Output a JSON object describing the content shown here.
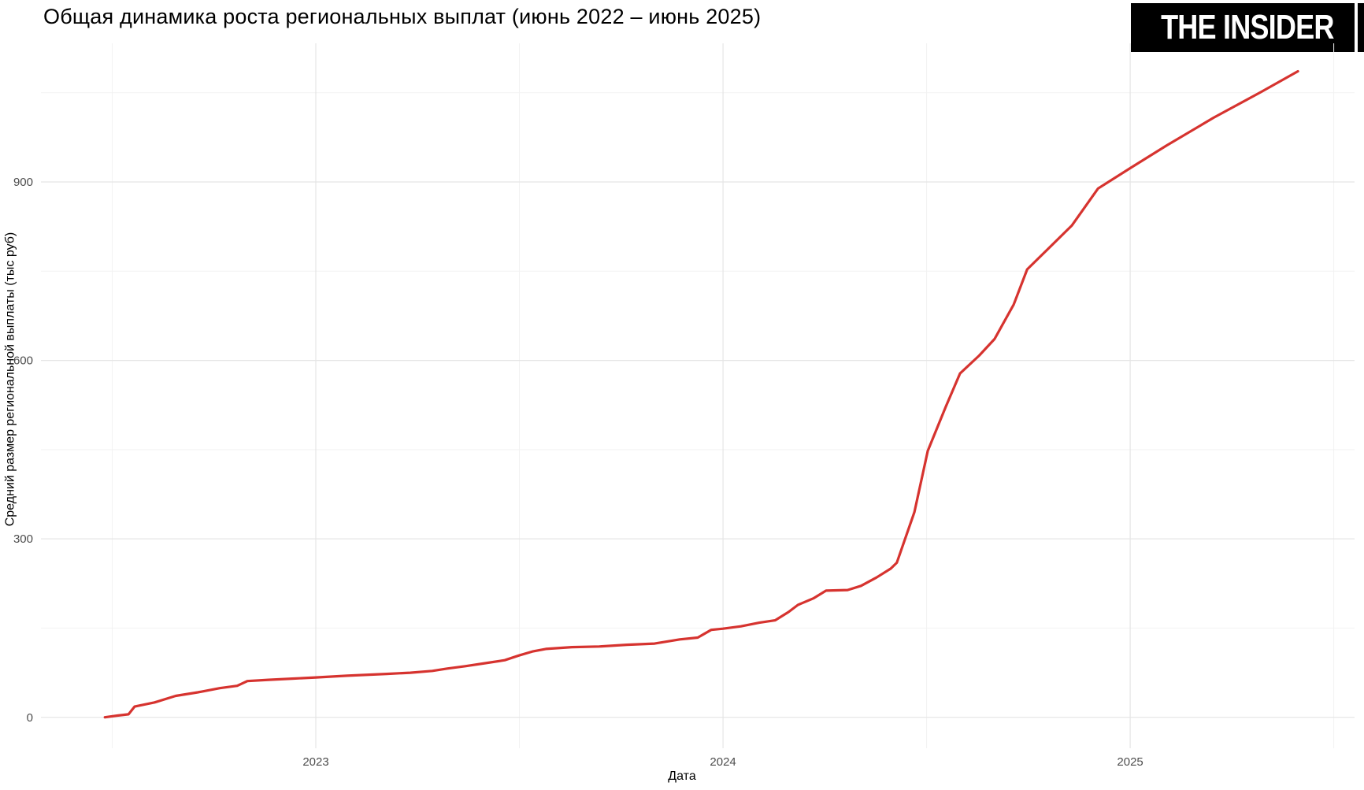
{
  "header": {
    "title": "Общая динамика роста региональных выплат (июнь 2022 – июнь 2025)",
    "logo_text": "THE INSIDER"
  },
  "colors": {
    "line": "#d6332f",
    "grid_major": "#e5e5e5",
    "grid_minor": "#f2f2f2",
    "tick_text": "#4d4d4d",
    "background": "#ffffff",
    "logo_bg": "#000000",
    "logo_text": "#ffffff"
  },
  "chart_data": {
    "type": "line",
    "title": "Общая динамика роста региональных выплат (июнь 2022 – июнь 2025)",
    "xlabel": "Дата",
    "ylabel": "Средний размер региональной выплаты (тыс руб)",
    "legend_position": "none",
    "grid": true,
    "xlim": [
      2022.325,
      2025.551
    ],
    "ylim": [
      -52,
      1133
    ],
    "x_major_ticks": [
      {
        "label": "2023",
        "x": 2023
      },
      {
        "label": "2024",
        "x": 2024
      },
      {
        "label": "2025",
        "x": 2025
      }
    ],
    "x_minor_ticks": [
      2022.5,
      2023.5,
      2024.5,
      2025.5
    ],
    "y_major_ticks": [
      {
        "label": "0",
        "y": 0
      },
      {
        "label": "300",
        "y": 300
      },
      {
        "label": "600",
        "y": 600
      },
      {
        "label": "900",
        "y": 900
      }
    ],
    "y_minor_ticks": [
      150,
      450,
      750,
      1050
    ],
    "series": [
      {
        "name": "Средний размер региональной выплаты (тыс руб)",
        "color": "#d6332f",
        "points": [
          [
            2022.482,
            0
          ],
          [
            2022.513,
            3
          ],
          [
            2022.54,
            5
          ],
          [
            2022.555,
            18
          ],
          [
            2022.604,
            25
          ],
          [
            2022.656,
            36
          ],
          [
            2022.71,
            42
          ],
          [
            2022.764,
            49
          ],
          [
            2022.807,
            53
          ],
          [
            2022.832,
            61
          ],
          [
            2022.884,
            63
          ],
          [
            2022.942,
            65
          ],
          [
            2023.0,
            67
          ],
          [
            2023.077,
            70
          ],
          [
            2023.174,
            73
          ],
          [
            2023.232,
            75
          ],
          [
            2023.286,
            78
          ],
          [
            2023.323,
            82
          ],
          [
            2023.367,
            86
          ],
          [
            2023.416,
            91
          ],
          [
            2023.464,
            96
          ],
          [
            2023.499,
            104
          ],
          [
            2023.534,
            111
          ],
          [
            2023.565,
            115
          ],
          [
            2023.629,
            118
          ],
          [
            2023.696,
            119
          ],
          [
            2023.764,
            122
          ],
          [
            2023.832,
            124
          ],
          [
            2023.894,
            131
          ],
          [
            2023.938,
            134
          ],
          [
            2023.971,
            147
          ],
          [
            2024.0,
            149
          ],
          [
            2024.044,
            153
          ],
          [
            2024.089,
            159
          ],
          [
            2024.128,
            163
          ],
          [
            2024.161,
            177
          ],
          [
            2024.184,
            189
          ],
          [
            2024.222,
            200
          ],
          [
            2024.253,
            213
          ],
          [
            2024.306,
            214
          ],
          [
            2024.339,
            221
          ],
          [
            2024.377,
            235
          ],
          [
            2024.412,
            250
          ],
          [
            2024.427,
            260
          ],
          [
            2024.47,
            345
          ],
          [
            2024.503,
            448
          ],
          [
            2024.547,
            522
          ],
          [
            2024.582,
            578
          ],
          [
            2024.629,
            608
          ],
          [
            2024.667,
            636
          ],
          [
            2024.714,
            694
          ],
          [
            2024.747,
            753
          ],
          [
            2024.799,
            788
          ],
          [
            2024.857,
            827
          ],
          [
            2024.921,
            889
          ],
          [
            2025.002,
            924
          ],
          [
            2025.089,
            961
          ],
          [
            2025.205,
            1008
          ],
          [
            2025.321,
            1051
          ],
          [
            2025.412,
            1086
          ]
        ]
      }
    ]
  }
}
